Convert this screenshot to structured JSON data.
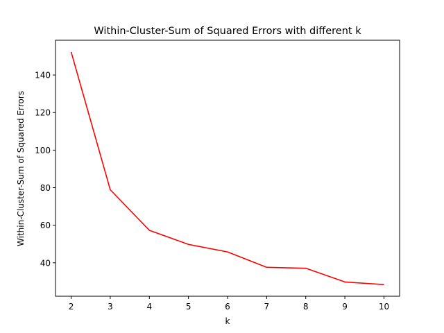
{
  "chart_data": {
    "type": "line",
    "title": "Within-Cluster-Sum of Squared Errors with different k",
    "xlabel": "k",
    "ylabel": "Within-Cluster-Sum of Squared Errors",
    "x": [
      2,
      3,
      4,
      5,
      6,
      7,
      8,
      9,
      10
    ],
    "series": [
      {
        "values": [
          152.3,
          78.9,
          57.3,
          49.8,
          45.8,
          37.6,
          37.1,
          29.8,
          28.4
        ],
        "color": "#ff0000"
      }
    ],
    "xlim": [
      1.6,
      10.4
    ],
    "ylim": [
      22.2,
      158.5
    ],
    "xticks": [
      2,
      3,
      4,
      5,
      6,
      7,
      8,
      9,
      10
    ],
    "yticks": [
      40,
      60,
      80,
      100,
      120,
      140
    ],
    "grid": false,
    "legend": "none"
  }
}
